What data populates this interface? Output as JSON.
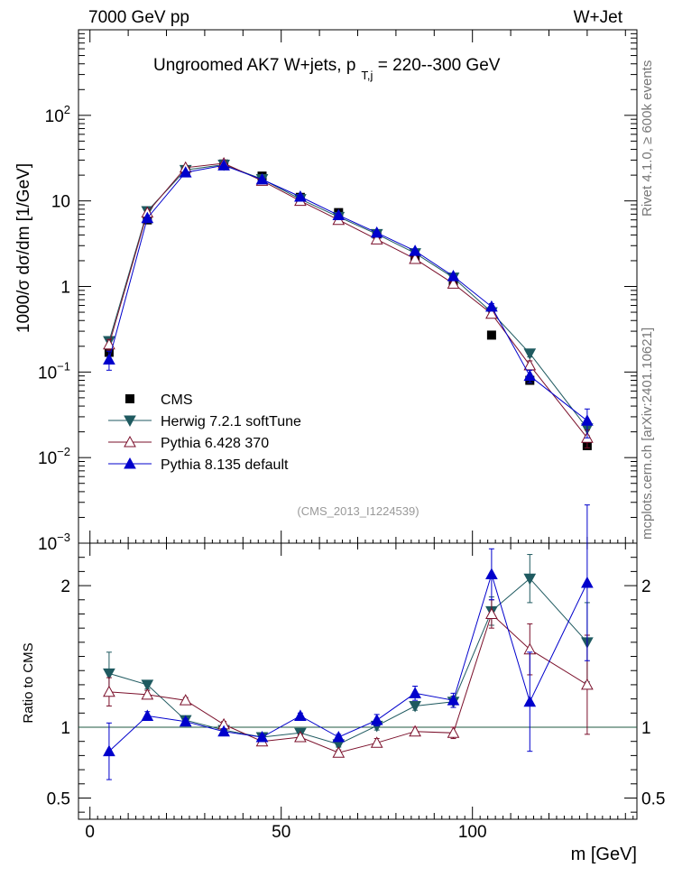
{
  "header": {
    "left": "7000 GeV pp",
    "right": "W+Jet",
    "side_rivet": "Rivet 4.1.0, ≥ 600k events",
    "side_mcplots": "mcplots.cern.ch [arXiv:2401.10621]",
    "watermark": "(CMS_2013_I1224539)"
  },
  "chart_data": {
    "type": "scatter",
    "title": "Ungroomed AK7 W+jets, p",
    "title_sub": "T,j",
    "title_rest": " = 220--300 GeV",
    "ylabel": "1000/σ  dσ/dm [1/GeV]",
    "xlabel": "m [GeV]",
    "ratio_ylabel": "Ratio to CMS",
    "xlim": [
      -3,
      143
    ],
    "ylim_log": [
      0.001,
      1000
    ],
    "ratio_ylim": [
      0.35,
      2.3
    ],
    "x_ticks": [
      0,
      50,
      100
    ],
    "y_major": [
      {
        "v": 0.001,
        "base": "10",
        "exp": "−3"
      },
      {
        "v": 0.01,
        "base": "10",
        "exp": "−2"
      },
      {
        "v": 0.1,
        "base": "10",
        "exp": "−1"
      },
      {
        "v": 1,
        "base": "1",
        "exp": ""
      },
      {
        "v": 10,
        "base": "10",
        "exp": ""
      },
      {
        "v": 100,
        "base": "10",
        "exp": "2"
      }
    ],
    "ratio_ticks": [
      {
        "v": 0.5,
        "label": "0.5"
      },
      {
        "v": 1,
        "label": "1"
      },
      {
        "v": 2,
        "label": "2"
      }
    ],
    "x": [
      5,
      15,
      25,
      35,
      45,
      55,
      65,
      75,
      85,
      95,
      105,
      115,
      130
    ],
    "series": [
      {
        "name": "CMS",
        "role": "data",
        "marker": "square",
        "color": "#000000",
        "values": [
          0.17,
          6.0,
          22.0,
          27.0,
          19.5,
          11.0,
          7.3,
          4.1,
          2.15,
          1.1,
          0.27,
          0.08,
          0.0138
        ]
      },
      {
        "name": "Herwig 7.2.1 softTune",
        "marker": "tri-down",
        "color": "#1f5a60",
        "values": [
          0.23,
          7.6,
          23.0,
          26.5,
          18.0,
          10.5,
          6.5,
          4.1,
          2.45,
          1.27,
          0.5,
          0.165,
          0.022
        ],
        "errors": [
          0.03,
          0.2,
          0.5,
          0.5,
          0.4,
          0.25,
          0.15,
          0.1,
          0.06,
          0.04,
          0.03,
          0.015,
          0.004
        ],
        "ratio": [
          1.38,
          1.3,
          1.05,
          0.98,
          0.93,
          0.96,
          0.88,
          1.01,
          1.15,
          1.18,
          1.82,
          2.05,
          1.6
        ],
        "ratio_err": [
          0.15,
          0.03,
          0.02,
          0.02,
          0.02,
          0.02,
          0.02,
          0.03,
          0.03,
          0.04,
          0.1,
          0.17,
          0.28
        ]
      },
      {
        "name": "Pythia 6.428 370",
        "marker": "tri-up-open",
        "color": "#7a0f2a",
        "values": [
          0.21,
          7.3,
          24.5,
          27.5,
          17.2,
          10.0,
          6.0,
          3.55,
          2.1,
          1.08,
          0.48,
          0.12,
          0.017
        ],
        "errors": [
          0.03,
          0.2,
          0.5,
          0.5,
          0.4,
          0.25,
          0.15,
          0.1,
          0.06,
          0.04,
          0.03,
          0.015,
          0.004
        ],
        "ratio": [
          1.25,
          1.23,
          1.19,
          1.02,
          0.9,
          0.93,
          0.82,
          0.89,
          0.97,
          0.96,
          1.8,
          1.55,
          1.3
        ],
        "ratio_err": [
          0.1,
          0.03,
          0.02,
          0.02,
          0.02,
          0.02,
          0.02,
          0.03,
          0.03,
          0.04,
          0.1,
          0.18,
          0.35
        ]
      },
      {
        "name": "Pythia 8.135 default",
        "marker": "tri-up",
        "color": "#0000cc",
        "values": [
          0.14,
          6.3,
          21.5,
          26.0,
          17.8,
          11.2,
          6.8,
          4.25,
          2.6,
          1.32,
          0.58,
          0.09,
          0.027
        ],
        "errors": [
          0.035,
          0.2,
          0.5,
          0.5,
          0.4,
          0.25,
          0.15,
          0.1,
          0.06,
          0.04,
          0.05,
          0.015,
          0.01
        ],
        "ratio": [
          0.83,
          1.08,
          1.04,
          0.97,
          0.93,
          1.08,
          0.93,
          1.05,
          1.24,
          1.19,
          2.08,
          1.18,
          2.02
        ],
        "ratio_err": [
          0.2,
          0.03,
          0.02,
          0.02,
          0.02,
          0.02,
          0.02,
          0.04,
          0.05,
          0.05,
          0.18,
          0.35,
          0.55
        ]
      }
    ]
  }
}
